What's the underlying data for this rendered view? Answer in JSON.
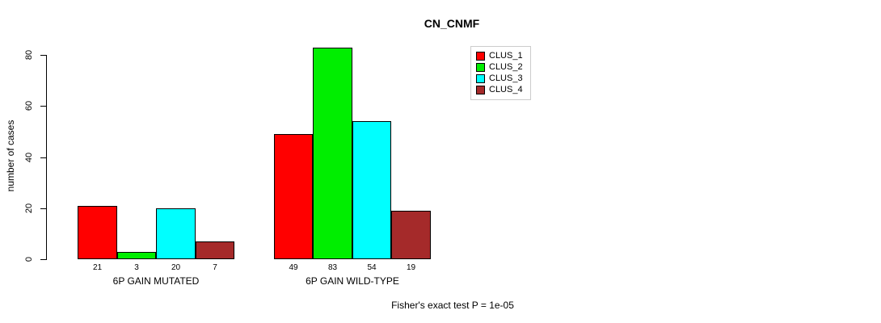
{
  "annotation": "Fisher's exact test P = 1e-05",
  "chart_data": {
    "type": "bar",
    "title": "CN_CNMF",
    "xlabel": "",
    "ylabel": "number of cases",
    "ylim": [
      0,
      80
    ],
    "yticks": [
      0,
      20,
      40,
      60,
      80
    ],
    "grid": false,
    "legend_position": "top-right",
    "bar_value_labels_shown": true,
    "categories": [
      "6P GAIN MUTATED",
      "6P GAIN WILD-TYPE"
    ],
    "series": [
      {
        "name": "CLUS_1",
        "color": "#FF0000",
        "values": [
          21,
          49
        ]
      },
      {
        "name": "CLUS_2",
        "color": "#00EE00",
        "values": [
          3,
          83
        ]
      },
      {
        "name": "CLUS_3",
        "color": "#00FFFF",
        "values": [
          20,
          54
        ]
      },
      {
        "name": "CLUS_4",
        "color": "#A52A2A",
        "values": [
          7,
          19
        ]
      }
    ],
    "colors": {
      "background": "#FFFFFF",
      "axis": "#000000",
      "text": "#000000",
      "legend_border": "#CCCCCC"
    }
  }
}
